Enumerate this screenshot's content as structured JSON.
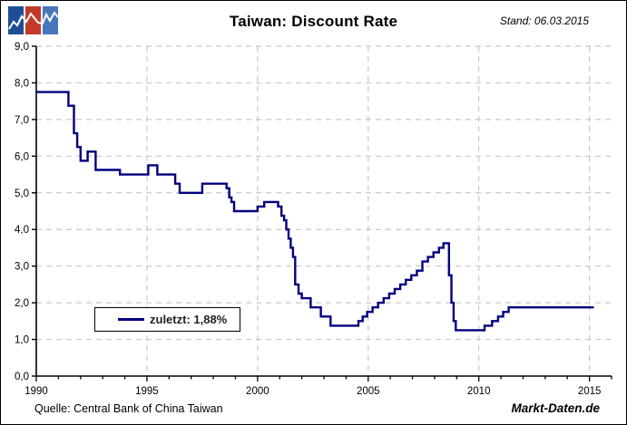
{
  "header": {
    "title": "Taiwan: Discount Rate",
    "stand": "Stand: 06.03.2015"
  },
  "footer": {
    "source": "Quelle: Central Bank of China Taiwan",
    "brand": "Markt-Daten.de"
  },
  "legend": {
    "label": "zuletzt: 1,88%"
  },
  "logo": {
    "icon": "zigzag-sparkline-tiles",
    "tile_colors": [
      "#1d4f94",
      "#c23b2a",
      "#4a77bc"
    ],
    "zigzag_color": "#ffffff"
  },
  "colors": {
    "line": "#000080",
    "grid": "#c8c8c8",
    "axis": "#000000",
    "legend_text": "#222222",
    "background": "#ffffff"
  },
  "chart_data": {
    "type": "line",
    "line_style": "step-after",
    "title": "Taiwan: Discount Rate",
    "xlabel": "",
    "ylabel": "",
    "xlim": [
      1990,
      2016
    ],
    "ylim": [
      0,
      9
    ],
    "grid": true,
    "x_gridlines": [
      1995,
      2000,
      2005,
      2010,
      2015
    ],
    "x_major_ticks": [
      {
        "v": 1990,
        "label": "1990"
      },
      {
        "v": 1995,
        "label": "1995"
      },
      {
        "v": 2000,
        "label": "2000"
      },
      {
        "v": 2005,
        "label": "2005"
      },
      {
        "v": 2010,
        "label": "2010"
      },
      {
        "v": 2015,
        "label": "2015"
      }
    ],
    "x_minor_tick_step": 1,
    "y_ticks": [
      {
        "v": 0,
        "label": "0,0"
      },
      {
        "v": 1,
        "label": "1,0"
      },
      {
        "v": 2,
        "label": "2,0"
      },
      {
        "v": 3,
        "label": "3,0"
      },
      {
        "v": 4,
        "label": "4,0"
      },
      {
        "v": 5,
        "label": "5,0"
      },
      {
        "v": 6,
        "label": "6,0"
      },
      {
        "v": 7,
        "label": "7,0"
      },
      {
        "v": 8,
        "label": "8,0"
      },
      {
        "v": 9,
        "label": "9,0"
      }
    ],
    "legend": {
      "position": "inside-bottom-left",
      "label": "zuletzt: 1,88%"
    },
    "last_value_pct": 1.88,
    "series": [
      {
        "name": "Taiwan discount rate (%)",
        "color": "#000080",
        "end_x": 2015.2,
        "points": [
          [
            1990.0,
            7.75
          ],
          [
            1991.45,
            7.375
          ],
          [
            1991.7,
            6.625
          ],
          [
            1991.85,
            6.25
          ],
          [
            1992.0,
            5.875
          ],
          [
            1992.32,
            6.125
          ],
          [
            1992.68,
            5.625
          ],
          [
            1993.78,
            5.5
          ],
          [
            1995.06,
            5.75
          ],
          [
            1995.47,
            5.5
          ],
          [
            1996.28,
            5.25
          ],
          [
            1996.48,
            5.0
          ],
          [
            1997.5,
            5.25
          ],
          [
            1998.6,
            5.125
          ],
          [
            1998.72,
            4.875
          ],
          [
            1998.82,
            4.75
          ],
          [
            1998.94,
            4.5
          ],
          [
            2000.0,
            4.625
          ],
          [
            2000.3,
            4.75
          ],
          [
            2000.93,
            4.625
          ],
          [
            2001.08,
            4.375
          ],
          [
            2001.2,
            4.25
          ],
          [
            2001.3,
            4.0
          ],
          [
            2001.4,
            3.75
          ],
          [
            2001.5,
            3.5
          ],
          [
            2001.6,
            3.25
          ],
          [
            2001.7,
            2.5
          ],
          [
            2001.85,
            2.25
          ],
          [
            2002.0,
            2.125
          ],
          [
            2002.4,
            1.875
          ],
          [
            2002.86,
            1.625
          ],
          [
            2003.3,
            1.375
          ],
          [
            2004.56,
            1.5
          ],
          [
            2004.75,
            1.625
          ],
          [
            2004.95,
            1.75
          ],
          [
            2005.2,
            1.875
          ],
          [
            2005.45,
            2.0
          ],
          [
            2005.7,
            2.125
          ],
          [
            2005.95,
            2.25
          ],
          [
            2006.2,
            2.375
          ],
          [
            2006.45,
            2.5
          ],
          [
            2006.7,
            2.625
          ],
          [
            2006.95,
            2.75
          ],
          [
            2007.2,
            2.875
          ],
          [
            2007.45,
            3.125
          ],
          [
            2007.7,
            3.25
          ],
          [
            2007.95,
            3.375
          ],
          [
            2008.2,
            3.5
          ],
          [
            2008.4,
            3.625
          ],
          [
            2008.65,
            2.75
          ],
          [
            2008.76,
            2.0
          ],
          [
            2008.86,
            1.5
          ],
          [
            2008.96,
            1.25
          ],
          [
            2010.26,
            1.375
          ],
          [
            2010.6,
            1.5
          ],
          [
            2010.87,
            1.625
          ],
          [
            2011.1,
            1.75
          ],
          [
            2011.35,
            1.875
          ]
        ]
      }
    ]
  }
}
